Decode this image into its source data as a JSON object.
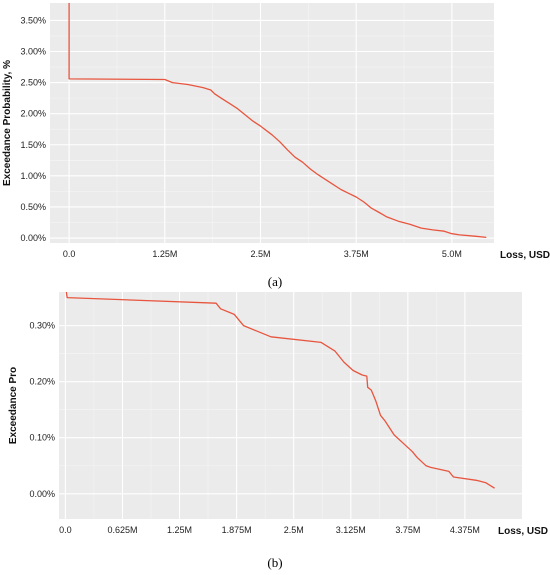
{
  "chart_data": [
    {
      "type": "line",
      "caption": "(a)",
      "xlabel": "Loss, USD",
      "ylabel": "Exceedance Probability, %",
      "xlim": [
        -250000,
        5550000
      ],
      "ylim": [
        -0.08,
        3.78
      ],
      "x_ticks": [
        0,
        1250000,
        2500000,
        3750000,
        5000000
      ],
      "x_tick_labels": [
        "0.0",
        "1.25M",
        "2.5M",
        "3.75M",
        "5.0M"
      ],
      "y_ticks": [
        0,
        0.5,
        1.0,
        1.5,
        2.0,
        2.5,
        3.0,
        3.5
      ],
      "y_tick_labels": [
        "0.00%",
        "0.50%",
        "1.00%",
        "1.50%",
        "2.00%",
        "2.50%",
        "3.00%",
        "3.50%"
      ],
      "grid": true,
      "color": "#e8553e",
      "series": [
        {
          "x": [
            0,
            0,
            1250000,
            1350000,
            1550000,
            1750000,
            1850000,
            1900000,
            2000000,
            2100000,
            2200000,
            2300000,
            2400000,
            2500000,
            2650000,
            2750000,
            2850000,
            2950000,
            3050000,
            3150000,
            3250000,
            3400000,
            3550000,
            3650000,
            3750000,
            3850000,
            3950000,
            4050000,
            4150000,
            4300000,
            4450000,
            4600000,
            4750000,
            4900000,
            5000000,
            5100000,
            5300000,
            5450000
          ],
          "y": [
            3.78,
            2.56,
            2.55,
            2.5,
            2.47,
            2.42,
            2.38,
            2.32,
            2.24,
            2.16,
            2.08,
            1.98,
            1.88,
            1.8,
            1.66,
            1.55,
            1.42,
            1.3,
            1.22,
            1.11,
            1.02,
            0.9,
            0.78,
            0.72,
            0.66,
            0.58,
            0.48,
            0.41,
            0.34,
            0.27,
            0.22,
            0.16,
            0.13,
            0.11,
            0.07,
            0.05,
            0.03,
            0.01
          ]
        }
      ]
    },
    {
      "type": "line",
      "caption": "(b)",
      "xlabel": "Loss, USD",
      "ylabel": "Exceedance Pro",
      "xlim": [
        -70000,
        5000000
      ],
      "ylim": [
        -0.045,
        0.36
      ],
      "x_ticks": [
        0,
        625000,
        1250000,
        1875000,
        2500000,
        3125000,
        3750000,
        4375000
      ],
      "x_tick_labels": [
        "0.0",
        "0.625M",
        "1.25M",
        "1.875M",
        "2.5M",
        "3.125M",
        "3.75M",
        "4.375M"
      ],
      "y_ticks": [
        0,
        0.1,
        0.2,
        0.3
      ],
      "y_tick_labels": [
        "0.00%",
        "0.10%",
        "0.20%",
        "0.30%"
      ],
      "grid": true,
      "color": "#e8553e",
      "series": [
        {
          "x": [
            10000,
            20000,
            1650000,
            1700000,
            1850000,
            1950000,
            2100000,
            2250000,
            2800000,
            2950000,
            3050000,
            3150000,
            3250000,
            3300000,
            3310000,
            3350000,
            3400000,
            3450000,
            3500000,
            3600000,
            3700000,
            3800000,
            3850000,
            3950000,
            4000000,
            4200000,
            4250000,
            4500000,
            4600000,
            4700000
          ],
          "y": [
            0.36,
            0.35,
            0.34,
            0.33,
            0.32,
            0.3,
            0.29,
            0.28,
            0.27,
            0.255,
            0.235,
            0.22,
            0.212,
            0.21,
            0.19,
            0.185,
            0.165,
            0.14,
            0.13,
            0.105,
            0.09,
            0.075,
            0.065,
            0.05,
            0.047,
            0.04,
            0.03,
            0.024,
            0.02,
            0.01
          ]
        }
      ]
    }
  ]
}
